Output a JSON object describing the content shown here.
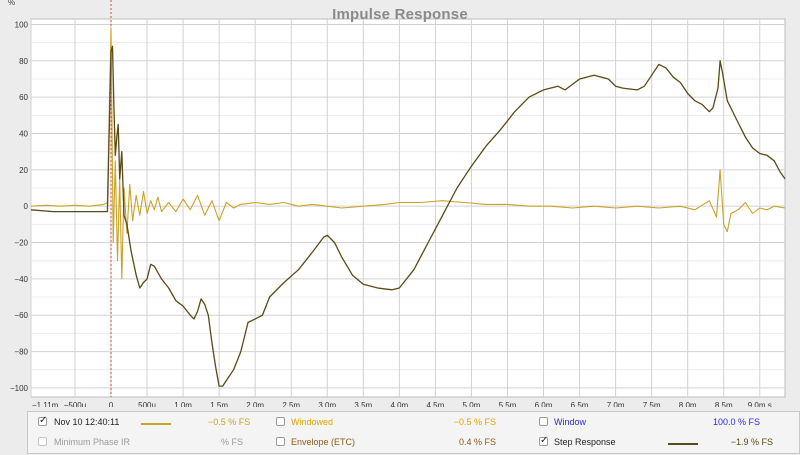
{
  "chart_data": {
    "type": "line",
    "title": "Impulse Response",
    "yunit": "%",
    "x_ticks": [
      {
        "v": -1.11,
        "label": "−1.11m"
      },
      {
        "v": -0.5,
        "label": "−500u"
      },
      {
        "v": 0,
        "label": "0"
      },
      {
        "v": 0.5,
        "label": "500u"
      },
      {
        "v": 1.0,
        "label": "1.0m"
      },
      {
        "v": 1.5,
        "label": "1.5m"
      },
      {
        "v": 2.0,
        "label": "2.0m"
      },
      {
        "v": 2.5,
        "label": "2.5m"
      },
      {
        "v": 3.0,
        "label": "3.0m"
      },
      {
        "v": 3.5,
        "label": "3.5m"
      },
      {
        "v": 4.0,
        "label": "4.0m"
      },
      {
        "v": 4.5,
        "label": "4.5m"
      },
      {
        "v": 5.0,
        "label": "5.0m"
      },
      {
        "v": 5.5,
        "label": "5.5m"
      },
      {
        "v": 6.0,
        "label": "6.0m"
      },
      {
        "v": 6.5,
        "label": "6.5m"
      },
      {
        "v": 7.0,
        "label": "7.0m"
      },
      {
        "v": 7.5,
        "label": "7.5m"
      },
      {
        "v": 8.0,
        "label": "8.0m"
      },
      {
        "v": 8.5,
        "label": "8.5m"
      },
      {
        "v": 9.0,
        "label": "9.0m s"
      }
    ],
    "xlim": [
      -1.11,
      9.35
    ],
    "ylim": [
      -105,
      103
    ],
    "y_ticks": [
      100,
      80,
      60,
      40,
      20,
      0,
      -20,
      -40,
      -60,
      -80,
      -100
    ],
    "grid": true,
    "marker_x": 0,
    "series": [
      {
        "name": "Nov 10 12:40:11",
        "color": "#c9a227",
        "points": [
          [
            -1.11,
            0
          ],
          [
            -0.9,
            0.5
          ],
          [
            -0.7,
            0
          ],
          [
            -0.5,
            0.5
          ],
          [
            -0.3,
            0
          ],
          [
            -0.1,
            1
          ],
          [
            -0.05,
            2
          ],
          [
            0,
            98
          ],
          [
            0.01,
            60
          ],
          [
            0.03,
            -20
          ],
          [
            0.06,
            25
          ],
          [
            0.09,
            -30
          ],
          [
            0.12,
            15
          ],
          [
            0.15,
            -40
          ],
          [
            0.18,
            10
          ],
          [
            0.22,
            -15
          ],
          [
            0.26,
            12
          ],
          [
            0.3,
            -8
          ],
          [
            0.35,
            6
          ],
          [
            0.4,
            -5
          ],
          [
            0.45,
            8
          ],
          [
            0.5,
            -4
          ],
          [
            0.55,
            3
          ],
          [
            0.6,
            -2
          ],
          [
            0.65,
            5
          ],
          [
            0.7,
            -3
          ],
          [
            0.8,
            2
          ],
          [
            0.9,
            -3
          ],
          [
            1.0,
            4
          ],
          [
            1.1,
            -2
          ],
          [
            1.2,
            6
          ],
          [
            1.3,
            -5
          ],
          [
            1.4,
            3
          ],
          [
            1.5,
            -8
          ],
          [
            1.6,
            2
          ],
          [
            1.7,
            -1
          ],
          [
            1.8,
            1
          ],
          [
            2.0,
            2
          ],
          [
            2.2,
            1
          ],
          [
            2.4,
            2
          ],
          [
            2.6,
            0
          ],
          [
            2.8,
            1
          ],
          [
            3.0,
            0
          ],
          [
            3.2,
            -1
          ],
          [
            3.5,
            0
          ],
          [
            3.8,
            1
          ],
          [
            4.0,
            2
          ],
          [
            4.3,
            2
          ],
          [
            4.6,
            3
          ],
          [
            4.9,
            2
          ],
          [
            5.2,
            1
          ],
          [
            5.5,
            1
          ],
          [
            5.8,
            0
          ],
          [
            6.1,
            0
          ],
          [
            6.4,
            -1
          ],
          [
            6.7,
            0
          ],
          [
            7.0,
            -1
          ],
          [
            7.3,
            0
          ],
          [
            7.6,
            -1
          ],
          [
            7.9,
            0
          ],
          [
            8.1,
            -2
          ],
          [
            8.3,
            3
          ],
          [
            8.4,
            -6
          ],
          [
            8.45,
            20
          ],
          [
            8.5,
            -10
          ],
          [
            8.55,
            -14
          ],
          [
            8.6,
            -4
          ],
          [
            8.7,
            -2
          ],
          [
            8.8,
            2
          ],
          [
            8.9,
            -4
          ],
          [
            9.0,
            -1
          ],
          [
            9.1,
            -2
          ],
          [
            9.2,
            0
          ],
          [
            9.35,
            -1
          ]
        ]
      },
      {
        "name": "Step Response",
        "color": "#5a4a14",
        "points": [
          [
            -1.11,
            -2
          ],
          [
            -0.8,
            -3
          ],
          [
            -0.5,
            -3
          ],
          [
            -0.2,
            -3
          ],
          [
            -0.05,
            -3
          ],
          [
            0,
            85
          ],
          [
            0.02,
            88
          ],
          [
            0.04,
            55
          ],
          [
            0.06,
            28
          ],
          [
            0.08,
            38
          ],
          [
            0.1,
            45
          ],
          [
            0.12,
            15
          ],
          [
            0.15,
            30
          ],
          [
            0.18,
            -5
          ],
          [
            0.22,
            -10
          ],
          [
            0.28,
            -25
          ],
          [
            0.35,
            -38
          ],
          [
            0.4,
            -45
          ],
          [
            0.45,
            -42
          ],
          [
            0.5,
            -40
          ],
          [
            0.55,
            -32
          ],
          [
            0.6,
            -33
          ],
          [
            0.7,
            -40
          ],
          [
            0.8,
            -45
          ],
          [
            0.9,
            -52
          ],
          [
            1.0,
            -55
          ],
          [
            1.1,
            -60
          ],
          [
            1.15,
            -62
          ],
          [
            1.2,
            -58
          ],
          [
            1.25,
            -51
          ],
          [
            1.3,
            -54
          ],
          [
            1.35,
            -60
          ],
          [
            1.4,
            -75
          ],
          [
            1.45,
            -88
          ],
          [
            1.5,
            -99
          ],
          [
            1.55,
            -99
          ],
          [
            1.6,
            -96
          ],
          [
            1.7,
            -90
          ],
          [
            1.8,
            -80
          ],
          [
            1.9,
            -64
          ],
          [
            2.0,
            -62
          ],
          [
            2.1,
            -60
          ],
          [
            2.2,
            -50
          ],
          [
            2.4,
            -42
          ],
          [
            2.6,
            -35
          ],
          [
            2.8,
            -25
          ],
          [
            2.95,
            -17
          ],
          [
            3.0,
            -16
          ],
          [
            3.1,
            -20
          ],
          [
            3.2,
            -28
          ],
          [
            3.35,
            -38
          ],
          [
            3.5,
            -43
          ],
          [
            3.7,
            -45
          ],
          [
            3.9,
            -46
          ],
          [
            4.0,
            -45
          ],
          [
            4.2,
            -35
          ],
          [
            4.4,
            -20
          ],
          [
            4.6,
            -5
          ],
          [
            4.8,
            10
          ],
          [
            5.0,
            22
          ],
          [
            5.2,
            33
          ],
          [
            5.4,
            42
          ],
          [
            5.6,
            52
          ],
          [
            5.8,
            60
          ],
          [
            6.0,
            64
          ],
          [
            6.2,
            66
          ],
          [
            6.3,
            64
          ],
          [
            6.5,
            70
          ],
          [
            6.7,
            72
          ],
          [
            6.9,
            70
          ],
          [
            7.0,
            66
          ],
          [
            7.1,
            65
          ],
          [
            7.3,
            64
          ],
          [
            7.4,
            66
          ],
          [
            7.5,
            72
          ],
          [
            7.6,
            78
          ],
          [
            7.7,
            76
          ],
          [
            7.8,
            71
          ],
          [
            7.9,
            68
          ],
          [
            8.0,
            62
          ],
          [
            8.1,
            58
          ],
          [
            8.2,
            56
          ],
          [
            8.3,
            52
          ],
          [
            8.35,
            54
          ],
          [
            8.42,
            65
          ],
          [
            8.45,
            80
          ],
          [
            8.48,
            74
          ],
          [
            8.55,
            58
          ],
          [
            8.6,
            54
          ],
          [
            8.7,
            46
          ],
          [
            8.8,
            38
          ],
          [
            8.9,
            32
          ],
          [
            9.0,
            29
          ],
          [
            9.1,
            28
          ],
          [
            9.2,
            25
          ],
          [
            9.28,
            19
          ],
          [
            9.35,
            15
          ]
        ]
      }
    ]
  },
  "legend": {
    "row1": {
      "item1": {
        "label": "Nov 10 12:40:11",
        "value": "−0.5 % FS",
        "checked": true,
        "color": "#c9a227"
      },
      "item2": {
        "label": "Windowed",
        "value": "−0.5 % FS",
        "checked": false,
        "color": "#e3a400"
      },
      "item3": {
        "label": "Window",
        "value": "100.0 % FS",
        "checked": false,
        "color": "#2b2bd6"
      }
    },
    "row2": {
      "item1": {
        "label": "Minimum Phase IR",
        "value": "% FS",
        "checked": false,
        "color": "#9a9a9a"
      },
      "item2": {
        "label": "Envelope (ETC)",
        "value": "0.4 % FS",
        "checked": false,
        "color": "#8a5a14"
      },
      "item3": {
        "label": "Step Response",
        "value": "−1.9 % FS",
        "checked": true,
        "color": "#5a4a14"
      }
    },
    "check_glyph": "✓"
  }
}
